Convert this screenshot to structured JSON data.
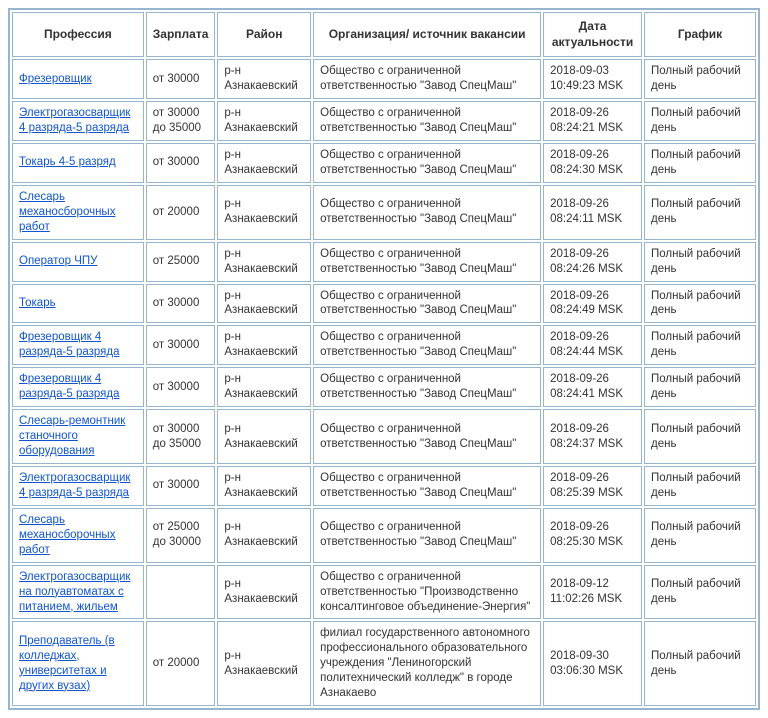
{
  "colors": {
    "border": "#98b5cf",
    "link": "#1155cc",
    "text": "#333333",
    "background": "#ffffff"
  },
  "headers": {
    "profession": "Профессия",
    "salary": "Зарплата",
    "region": "Район",
    "organization": "Организация/ источник вакансии",
    "date": "Дата актуальности",
    "schedule": "График"
  },
  "rows": [
    {
      "profession": "Фрезеровщик",
      "salary": "от 30000",
      "region": "р-н Азнакаевский",
      "organization": "Общество с ограниченной ответственностью \"Завод СпецМаш\"",
      "date": "2018-09-03 10:49:23 MSK",
      "schedule": "Полный рабочий день"
    },
    {
      "profession": "Электрогазосварщик 4 разряда-5 разряда",
      "salary": "от 30000 до 35000",
      "region": "р-н Азнакаевский",
      "organization": "Общество с ограниченной ответственностью \"Завод СпецМаш\"",
      "date": "2018-09-26 08:24:21 MSK",
      "schedule": "Полный рабочий день"
    },
    {
      "profession": "Токарь 4-5 разряд",
      "salary": "от 30000",
      "region": "р-н Азнакаевский",
      "organization": "Общество с ограниченной ответственностью \"Завод СпецМаш\"",
      "date": "2018-09-26 08:24:30 MSK",
      "schedule": "Полный рабочий день"
    },
    {
      "profession": "Слесарь механосборочных работ",
      "salary": "от 20000",
      "region": "р-н Азнакаевский",
      "organization": "Общество с ограниченной ответственностью \"Завод СпецМаш\"",
      "date": "2018-09-26 08:24:11 MSK",
      "schedule": "Полный рабочий день"
    },
    {
      "profession": "Оператор ЧПУ",
      "salary": "от 25000",
      "region": "р-н Азнакаевский",
      "organization": "Общество с ограниченной ответственностью \"Завод СпецМаш\"",
      "date": "2018-09-26 08:24:26 MSK",
      "schedule": "Полный рабочий день"
    },
    {
      "profession": "Токарь",
      "salary": "от 30000",
      "region": "р-н Азнакаевский",
      "organization": "Общество с ограниченной ответственностью \"Завод СпецМаш\"",
      "date": "2018-09-26 08:24:49 MSK",
      "schedule": "Полный рабочий день"
    },
    {
      "profession": "Фрезеровщик 4 разряда-5 разряда",
      "salary": "от 30000",
      "region": "р-н Азнакаевский",
      "organization": "Общество с ограниченной ответственностью \"Завод СпецМаш\"",
      "date": "2018-09-26 08:24:44 MSK",
      "schedule": "Полный рабочий день"
    },
    {
      "profession": "Фрезеровщик 4 разряда-5 разряда",
      "salary": "от 30000",
      "region": "р-н Азнакаевский",
      "organization": "Общество с ограниченной ответственностью \"Завод СпецМаш\"",
      "date": "2018-09-26 08:24:41 MSK",
      "schedule": "Полный рабочий день"
    },
    {
      "profession": "Слесарь-ремонтник станочного оборудования",
      "salary": "от 30000 до 35000",
      "region": "р-н Азнакаевский",
      "organization": "Общество с ограниченной ответственностью \"Завод СпецМаш\"",
      "date": "2018-09-26 08:24:37 MSK",
      "schedule": "Полный рабочий день"
    },
    {
      "profession": "Электрогазосварщик 4 разряда-5 разряда",
      "salary": "от 30000",
      "region": "р-н Азнакаевский",
      "organization": "Общество с ограниченной ответственностью \"Завод СпецМаш\"",
      "date": "2018-09-26 08:25:39 MSK",
      "schedule": "Полный рабочий день"
    },
    {
      "profession": "Слесарь механосборочных работ",
      "salary": "от 25000 до 30000",
      "region": "р-н Азнакаевский",
      "organization": "Общество с ограниченной ответственностью \"Завод СпецМаш\"",
      "date": "2018-09-26 08:25:30 MSK",
      "schedule": "Полный рабочий день"
    },
    {
      "profession": "Электрогазосварщик на полуавтоматах с питанием, жильем",
      "salary": "",
      "region": "р-н Азнакаевский",
      "organization": "Общество с ограниченной ответственностью \"Производственно консалтинговое объединение-Энергия\"",
      "date": "2018-09-12 11:02:26 MSK",
      "schedule": "Полный рабочий день"
    },
    {
      "profession": "Преподаватель (в колледжах, университетах и других вузах)",
      "salary": "от 20000",
      "region": "р-н Азнакаевский",
      "organization": "филиал государственного автономного профессионального образовательного учреждения \"Лениногорский политехнический колледж\" в городе Азнакаево",
      "date": "2018-09-30 03:06:30 MSK",
      "schedule": "Полный рабочий день"
    }
  ]
}
